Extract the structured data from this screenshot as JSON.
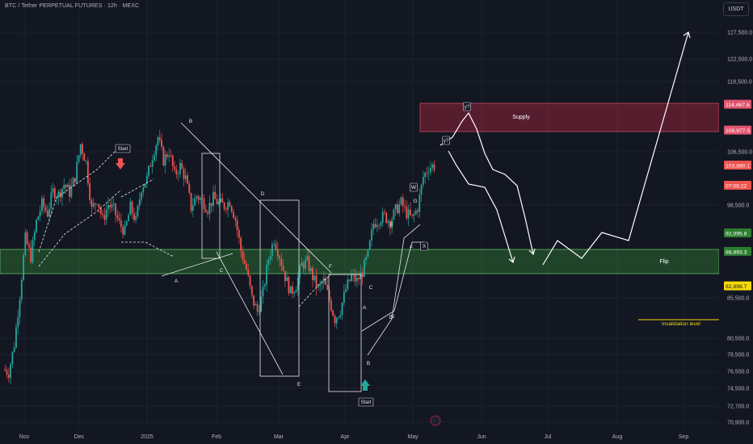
{
  "header": {
    "symbol_title": "BTC / Tether PERPETUAL FUTURES · 12h · MEXC",
    "currency_button": "USDT"
  },
  "colors": {
    "background": "#131722",
    "bull": "#26a69a",
    "bear": "#ef5350",
    "supply_zone": "#8e2238",
    "flip_zone": "#2e7d32",
    "invalidation": "#f5d90a"
  },
  "chart_data": {
    "type": "candlestick",
    "x_ticks": [
      "Nov",
      "Dec",
      "2025",
      "Feb",
      "Mar",
      "Apr",
      "May",
      "Jun",
      "Jul",
      "Aug",
      "Sep"
    ],
    "y_ticks": [
      "127,500.0",
      "122,500.0",
      "118,500.0",
      "106,500.0",
      "98,500.0",
      "85,500.0",
      "80,500.0",
      "78,500.0",
      "76,500.0",
      "74,500.0",
      "72,700.0",
      "70,900.0"
    ],
    "price_labels": [
      {
        "text": "114,467.6",
        "value": 114467.6,
        "kind": "supply"
      },
      {
        "text": "109,977.5",
        "value": 109977.5,
        "kind": "supply"
      },
      {
        "text": "103,880.1",
        "value": 103880.1,
        "kind": "last"
      },
      {
        "text": "07:06:22",
        "value": 102600,
        "kind": "countdown"
      },
      {
        "text": "92,095.8",
        "value": 92095.8,
        "kind": "flip"
      },
      {
        "text": "88,893.3",
        "value": 88893.3,
        "kind": "flip"
      },
      {
        "text": "82,898.7",
        "value": 82898.7,
        "kind": "invalidation"
      }
    ],
    "zones": [
      {
        "name": "Supply",
        "low": 109977.5,
        "high": 114467.6
      },
      {
        "name": "Flip",
        "low": 88893.3,
        "high": 92095.8
      }
    ],
    "invalidation": {
      "label": "invalidation level",
      "value": 82898.7
    },
    "wave_labels": [
      "B",
      "A",
      "C",
      "D",
      "E",
      "F",
      "G",
      "Start",
      "Start",
      "A",
      "B",
      "C",
      "D",
      "E",
      "F",
      "G",
      "W",
      "X",
      "y?",
      "y?"
    ],
    "ohlc_path": [
      [
        1,
        68500
      ],
      [
        4,
        67900
      ],
      [
        7,
        72800
      ],
      [
        10,
        81400
      ],
      [
        13,
        91200
      ],
      [
        16,
        88000
      ],
      [
        19,
        94100
      ],
      [
        22,
        97200
      ],
      [
        25,
        95600
      ],
      [
        28,
        99400
      ],
      [
        31,
        98800
      ],
      [
        34,
        100600
      ],
      [
        37,
        99200
      ],
      [
        40,
        101900
      ],
      [
        43,
        107600
      ],
      [
        46,
        104400
      ],
      [
        49,
        96200
      ],
      [
        52,
        98100
      ],
      [
        55,
        94400
      ],
      [
        58,
        97100
      ],
      [
        61,
        96200
      ],
      [
        64,
        93800
      ],
      [
        67,
        92400
      ],
      [
        70,
        96600
      ],
      [
        73,
        94200
      ],
      [
        76,
        100100
      ],
      [
        79,
        101600
      ],
      [
        82,
        105600
      ],
      [
        85,
        108800
      ],
      [
        88,
        104800
      ],
      [
        91,
        106400
      ],
      [
        94,
        102200
      ],
      [
        97,
        103800
      ],
      [
        100,
        101600
      ],
      [
        103,
        96600
      ],
      [
        106,
        98600
      ],
      [
        109,
        97800
      ],
      [
        112,
        96400
      ],
      [
        115,
        98200
      ],
      [
        118,
        97300
      ],
      [
        121,
        96900
      ],
      [
        124,
        97700
      ],
      [
        127,
        94600
      ],
      [
        130,
        89100
      ],
      [
        133,
        85800
      ],
      [
        136,
        80800
      ],
      [
        139,
        78500
      ],
      [
        142,
        81800
      ],
      [
        145,
        87700
      ],
      [
        148,
        91200
      ],
      [
        151,
        88200
      ],
      [
        154,
        84600
      ],
      [
        157,
        81800
      ],
      [
        160,
        83100
      ],
      [
        163,
        86600
      ],
      [
        166,
        87100
      ],
      [
        169,
        84500
      ],
      [
        172,
        82400
      ],
      [
        175,
        83800
      ],
      [
        178,
        80600
      ],
      [
        181,
        77200
      ],
      [
        184,
        78800
      ],
      [
        187,
        82400
      ],
      [
        190,
        84600
      ],
      [
        193,
        83800
      ],
      [
        196,
        85400
      ],
      [
        199,
        88400
      ],
      [
        202,
        93800
      ],
      [
        205,
        94600
      ],
      [
        208,
        95100
      ],
      [
        211,
        94100
      ],
      [
        214,
        96100
      ],
      [
        217,
        97400
      ],
      [
        220,
        95600
      ],
      [
        223,
        94600
      ],
      [
        226,
        96600
      ],
      [
        229,
        101900
      ],
      [
        232,
        103600
      ],
      [
        235,
        103900
      ]
    ]
  }
}
